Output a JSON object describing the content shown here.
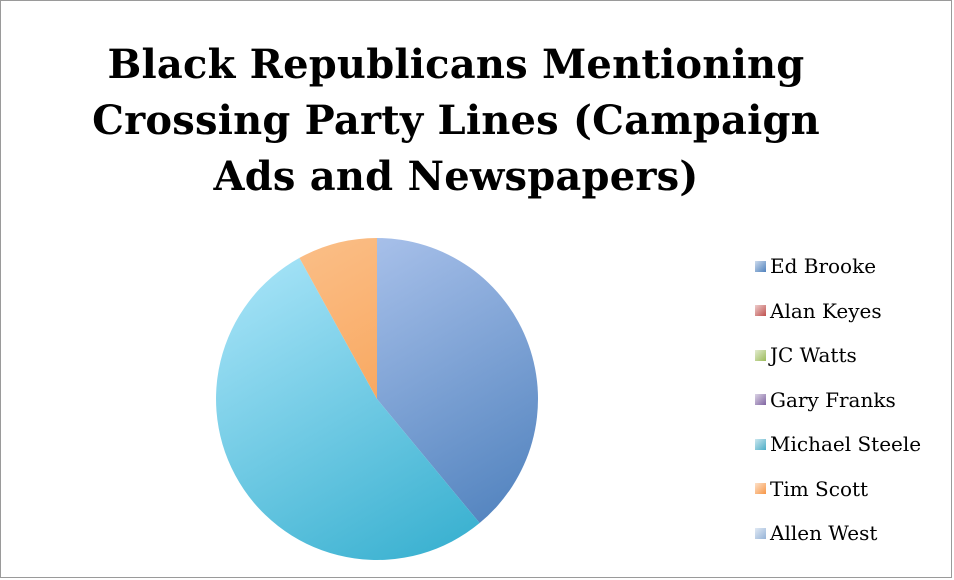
{
  "chart_data": {
    "type": "pie",
    "title_lines": [
      "Black Republicans Mentioning",
      "Crossing Party Lines (Campaign",
      "Ads and Newspapers)"
    ],
    "legend_position": "right",
    "series": [
      {
        "name": "Ed Brooke",
        "value": 0,
        "color": "#4f81bd"
      },
      {
        "name": "Alan Keyes",
        "value": 0,
        "color": "#c0504d"
      },
      {
        "name": "JC Watts",
        "value": 0,
        "color": "#9bbb59"
      },
      {
        "name": "Gary Franks",
        "value": 0,
        "color": "#8064a2"
      },
      {
        "name": "Michael Steele",
        "value": 0,
        "color": "#4bacc6"
      },
      {
        "name": "Tim Scott",
        "value": 0,
        "color": "#f79646"
      },
      {
        "name": "Allen West",
        "value": 0,
        "color": "#95b3d7"
      }
    ],
    "slices": [
      {
        "name": "Allen West",
        "value": 39,
        "colors": [
          "#b4c9f0",
          "#4f81bd"
        ]
      },
      {
        "name": "Michael Steele",
        "value": 53,
        "colors": [
          "#a8e4f8",
          "#36afcf"
        ]
      },
      {
        "name": "Tim Scott",
        "value": 8,
        "colors": [
          "#fbc08a",
          "#f6923a"
        ]
      }
    ]
  }
}
